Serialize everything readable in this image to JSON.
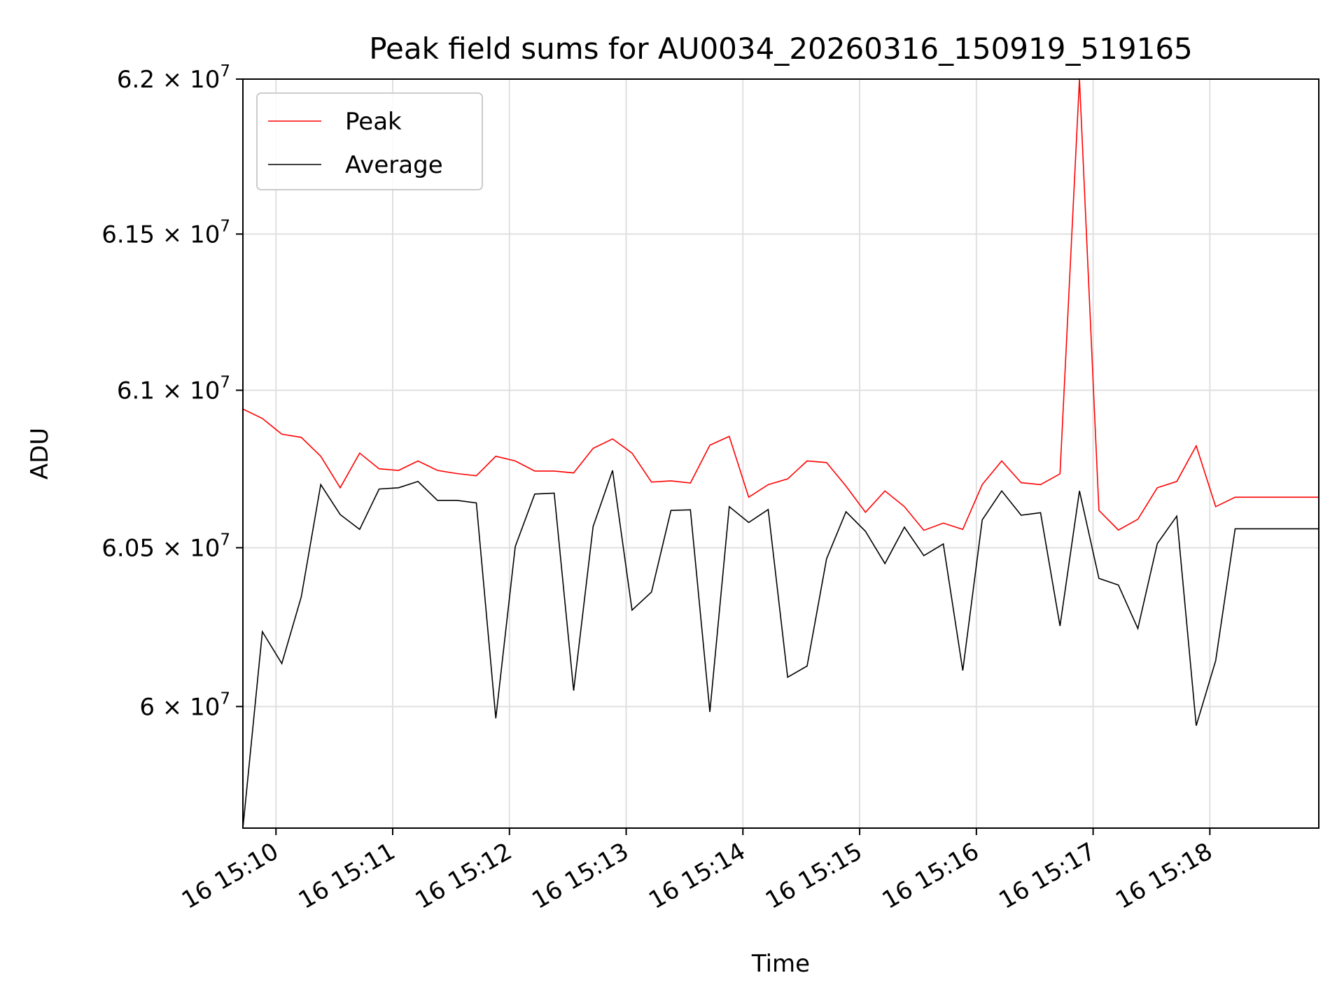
{
  "chart_data": {
    "type": "line",
    "title": "Peak field sums for AU0034_20260316_150919_519165",
    "xlabel": "Time",
    "ylabel": "ADU",
    "yscale": "log",
    "ylim": [
      59620000,
      62000000
    ],
    "xlim": [
      "15:09:43",
      "15:18:56"
    ],
    "grid": true,
    "legend_position": "upper-left",
    "colors": {
      "Peak": "#ff0000",
      "Average": "#000000",
      "grid": "#e0e0e0",
      "frame": "#000000"
    },
    "x_ticks": [
      {
        "value": "15:10:00",
        "label": "16 15:10"
      },
      {
        "value": "15:11:00",
        "label": "16 15:11"
      },
      {
        "value": "15:12:00",
        "label": "16 15:12"
      },
      {
        "value": "15:13:00",
        "label": "16 15:13"
      },
      {
        "value": "15:14:00",
        "label": "16 15:14"
      },
      {
        "value": "15:15:00",
        "label": "16 15:15"
      },
      {
        "value": "15:16:00",
        "label": "16 15:16"
      },
      {
        "value": "15:17:00",
        "label": "16 15:17"
      },
      {
        "value": "15:18:00",
        "label": "16 15:18"
      }
    ],
    "y_ticks": [
      {
        "value": 60000000,
        "mantissa": "6",
        "exp": "7"
      },
      {
        "value": 60500000,
        "mantissa": "6.05",
        "exp": "7"
      },
      {
        "value": 61000000,
        "mantissa": "6.1",
        "exp": "7"
      },
      {
        "value": 61500000,
        "mantissa": "6.15",
        "exp": "7"
      },
      {
        "value": 62000000,
        "mantissa": "6.2",
        "exp": "7"
      }
    ],
    "x": [
      "15:09:43",
      "15:09:53",
      "15:10:03",
      "15:10:13",
      "15:10:23",
      "15:10:33",
      "15:10:43",
      "15:10:53",
      "15:11:03",
      "15:11:13",
      "15:11:23",
      "15:11:33",
      "15:11:43",
      "15:11:53",
      "15:12:03",
      "15:12:13",
      "15:12:23",
      "15:12:33",
      "15:12:43",
      "15:12:53",
      "15:13:03",
      "15:13:13",
      "15:13:23",
      "15:13:33",
      "15:13:43",
      "15:13:53",
      "15:14:03",
      "15:14:13",
      "15:14:23",
      "15:14:33",
      "15:14:43",
      "15:14:53",
      "15:15:03",
      "15:15:13",
      "15:15:23",
      "15:15:33",
      "15:15:43",
      "15:15:53",
      "15:16:03",
      "15:16:13",
      "15:16:23",
      "15:16:33",
      "15:16:43",
      "15:16:53",
      "15:17:03",
      "15:17:13",
      "15:17:23",
      "15:17:33",
      "15:17:43",
      "15:17:53",
      "15:18:03",
      "15:18:13",
      "15:18:23",
      "15:18:33",
      "15:18:43",
      "15:18:56"
    ],
    "series": [
      {
        "name": "Peak",
        "values": [
          60940000,
          60910000,
          60860000,
          60850000,
          60790000,
          60690000,
          60800000,
          60750000,
          60745000,
          60775000,
          60745000,
          60735000,
          60728000,
          60790000,
          60775000,
          60743000,
          60743000,
          60737000,
          60815000,
          60845000,
          60800000,
          60708000,
          60712000,
          60705000,
          60825000,
          60853000,
          60660000,
          60700000,
          60718000,
          60775000,
          60770000,
          60695000,
          60612000,
          60680000,
          60630000,
          60555000,
          60578000,
          60558000,
          60700000,
          60775000,
          60706000,
          60700000,
          60734000,
          62000000,
          60618000,
          60556000,
          60590000,
          60690000,
          60710000,
          60823000,
          60630000,
          60660000,
          60660000,
          60660000,
          60660000,
          60660000
        ]
      },
      {
        "name": "Average",
        "values": [
          59620000,
          60235000,
          60135000,
          60345000,
          60700000,
          60605000,
          60558000,
          60686000,
          60690000,
          60710000,
          60650000,
          60650000,
          60642000,
          59963000,
          60504000,
          60670000,
          60673000,
          60050000,
          60567000,
          60745000,
          60303000,
          60360000,
          60618000,
          60620000,
          59983000,
          60630000,
          60580000,
          60621000,
          60092000,
          60127000,
          60465000,
          60614000,
          60552000,
          60450000,
          60565000,
          60475000,
          60512000,
          60113000,
          60588000,
          60680000,
          60603000,
          60611000,
          60253000,
          60680000,
          60403000,
          60382000,
          60245000,
          60513000,
          60600000,
          59940000,
          60144000,
          60560000,
          60560000,
          60560000,
          60560000,
          60560000
        ]
      }
    ]
  }
}
